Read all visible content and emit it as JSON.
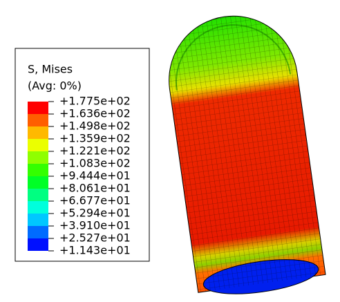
{
  "legend": {
    "title": "S, Mises",
    "subtitle": "(Avg: 0%)",
    "labels": [
      "+1.775e+02",
      "+1.636e+02",
      "+1.498e+02",
      "+1.359e+02",
      "+1.221e+02",
      "+1.083e+02",
      "+9.444e+01",
      "+8.061e+01",
      "+6.677e+01",
      "+5.294e+01",
      "+3.910e+01",
      "+2.527e+01",
      "+1.143e+01"
    ],
    "colors": [
      "#ff0000",
      "#ff5e00",
      "#ffb900",
      "#ebff00",
      "#8fff00",
      "#34ff00",
      "#00ff26",
      "#00ff81",
      "#00ffdc",
      "#00c7ff",
      "#006bff",
      "#0010ff"
    ]
  }
}
